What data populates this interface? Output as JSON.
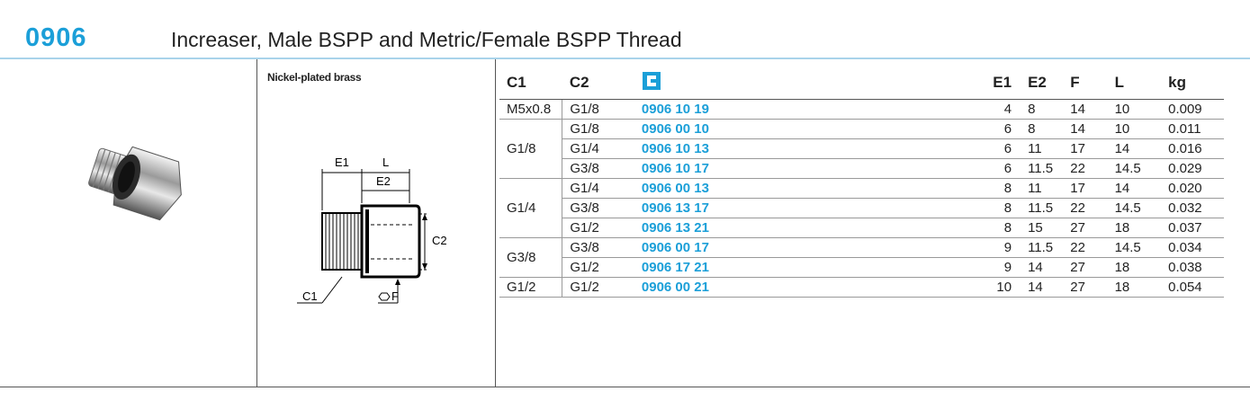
{
  "header": {
    "code": "0906",
    "title": "Increaser, Male BSPP and Metric/Female BSPP Thread"
  },
  "material": "Nickel-plated brass",
  "diagram": {
    "e1": "E1",
    "l": "L",
    "e2": "E2",
    "c2": "C2",
    "c1": "C1",
    "f": "F"
  },
  "table": {
    "columns": [
      "C1",
      "C2",
      "E1",
      "E2",
      "F",
      "L",
      "kg"
    ],
    "groups": [
      {
        "c1": "M5x0.8",
        "rows": [
          [
            "G1/8",
            "0906 10 19",
            "4",
            "8",
            "14",
            "10",
            "0.009"
          ]
        ]
      },
      {
        "c1": "G1/8",
        "rows": [
          [
            "G1/8",
            "0906 00 10",
            "6",
            "8",
            "14",
            "10",
            "0.011"
          ],
          [
            "G1/4",
            "0906 10 13",
            "6",
            "11",
            "17",
            "14",
            "0.016"
          ],
          [
            "G3/8",
            "0906 10 17",
            "6",
            "11.5",
            "22",
            "14.5",
            "0.029"
          ]
        ]
      },
      {
        "c1": "G1/4",
        "rows": [
          [
            "G1/4",
            "0906 00 13",
            "8",
            "11",
            "17",
            "14",
            "0.020"
          ],
          [
            "G3/8",
            "0906 13 17",
            "8",
            "11.5",
            "22",
            "14.5",
            "0.032"
          ],
          [
            "G1/2",
            "0906 13 21",
            "8",
            "15",
            "27",
            "18",
            "0.037"
          ]
        ]
      },
      {
        "c1": "G3/8",
        "rows": [
          [
            "G3/8",
            "0906 00 17",
            "9",
            "11.5",
            "22",
            "14.5",
            "0.034"
          ],
          [
            "G1/2",
            "0906 17 21",
            "9",
            "14",
            "27",
            "18",
            "0.038"
          ]
        ]
      },
      {
        "c1": "G1/2",
        "rows": [
          [
            "G1/2",
            "0906 00 21",
            "10",
            "14",
            "27",
            "18",
            "0.054"
          ]
        ]
      }
    ]
  }
}
